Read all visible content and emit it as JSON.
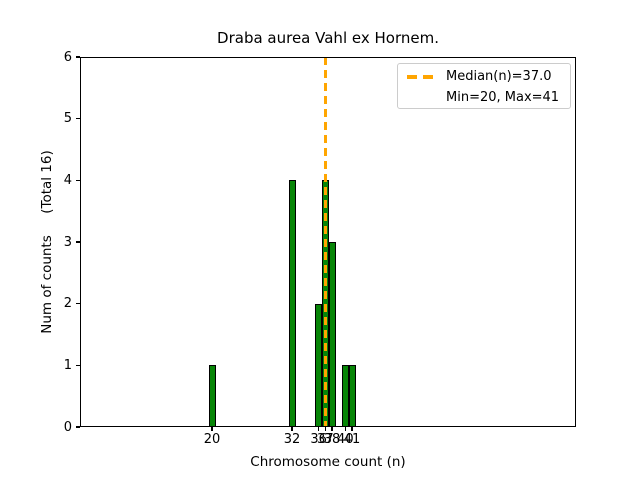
{
  "chart_data": {
    "type": "bar",
    "title": "Draba aurea Vahl ex Hornem.",
    "xlabel": "Chromosome count (n)",
    "ylabel": "Num of counts     (Total 16)",
    "x": [
      20,
      32,
      36,
      37,
      38,
      40,
      41
    ],
    "values": [
      1,
      4,
      2,
      4,
      3,
      1,
      1
    ],
    "total_counts": 16,
    "ylim": [
      0,
      6
    ],
    "yticks": [
      0,
      1,
      2,
      3,
      4,
      5,
      6
    ],
    "median": 37.0,
    "min": 20,
    "max": 41,
    "legend": {
      "position": "upper right",
      "entries": [
        "Median(n)=37.0",
        "Min=20, Max=41"
      ]
    },
    "colors": {
      "bar_fill": "#078507",
      "bar_edge": "#000000",
      "median_line": "#FFA500",
      "legend_border": "#cccccc",
      "text": "#000000",
      "background": "#ffffff"
    },
    "grid": false
  }
}
